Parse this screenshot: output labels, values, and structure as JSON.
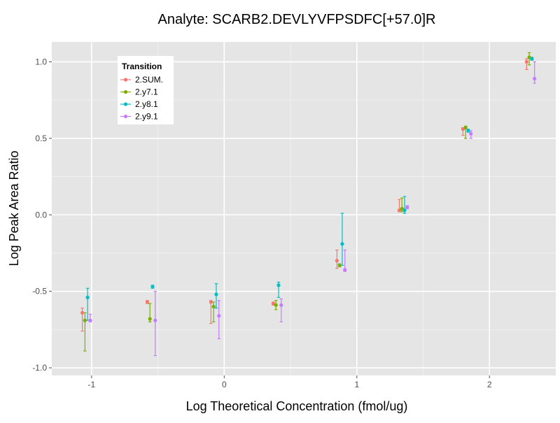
{
  "chart_data": {
    "type": "scatter",
    "title": "Analyte: SCARB2.DEVLYVFPSDFC[+57.0]R",
    "xlabel": "Log Theoretical Concentration (fmol/ug)",
    "ylabel": "Log Peak Area Ratio",
    "xlim": [
      -1.3,
      2.5
    ],
    "ylim": [
      -1.05,
      1.13
    ],
    "x_ticks": [
      -1,
      0,
      1,
      2
    ],
    "x_tick_labels": [
      "-1",
      "0",
      "1",
      "2"
    ],
    "y_ticks": [
      -1.0,
      -0.5,
      0.0,
      0.5,
      1.0
    ],
    "y_tick_labels": [
      "-1.0",
      "-0.5",
      "0.0",
      "0.5",
      "1.0"
    ],
    "grid": true,
    "legend": {
      "title": "Transition",
      "position": "top-left",
      "entries": [
        "2.SUM.",
        "2.y7.1",
        "2.y8.1",
        "2.y9.1"
      ]
    },
    "series": [
      {
        "name": "2.SUM.",
        "color": "#F8766D",
        "points": [
          {
            "x": -1.07,
            "y": -0.64,
            "lo": -0.76,
            "hi": -0.61
          },
          {
            "x": -0.58,
            "y": -0.57,
            "lo": -0.58,
            "hi": -0.56
          },
          {
            "x": -0.1,
            "y": -0.57,
            "lo": -0.71,
            "hi": -0.56
          },
          {
            "x": 0.37,
            "y": -0.58,
            "lo": -0.59,
            "hi": -0.57
          },
          {
            "x": 0.85,
            "y": -0.3,
            "lo": -0.35,
            "hi": -0.23
          },
          {
            "x": 1.32,
            "y": 0.03,
            "lo": 0.02,
            "hi": 0.1
          },
          {
            "x": 1.8,
            "y": 0.56,
            "lo": 0.52,
            "hi": 0.57
          },
          {
            "x": 2.28,
            "y": 1.0,
            "lo": 0.95,
            "hi": 1.02
          }
        ]
      },
      {
        "name": "2.y7.1",
        "color": "#7CAE00",
        "points": [
          {
            "x": -1.05,
            "y": -0.69,
            "lo": -0.89,
            "hi": -0.64
          },
          {
            "x": -0.56,
            "y": -0.68,
            "lo": -0.7,
            "hi": -0.58
          },
          {
            "x": -0.08,
            "y": -0.6,
            "lo": -0.7,
            "hi": -0.57
          },
          {
            "x": 0.39,
            "y": -0.59,
            "lo": -0.62,
            "hi": -0.56
          },
          {
            "x": 0.87,
            "y": -0.33,
            "lo": -0.34,
            "hi": -0.32
          },
          {
            "x": 1.34,
            "y": 0.04,
            "lo": 0.02,
            "hi": 0.11
          },
          {
            "x": 1.82,
            "y": 0.57,
            "lo": 0.5,
            "hi": 0.58
          },
          {
            "x": 2.3,
            "y": 1.03,
            "lo": 0.98,
            "hi": 1.06
          }
        ]
      },
      {
        "name": "2.y8.1",
        "color": "#00BFC4",
        "points": [
          {
            "x": -1.03,
            "y": -0.54,
            "lo": -0.69,
            "hi": -0.48
          },
          {
            "x": -0.54,
            "y": -0.47,
            "lo": -0.48,
            "hi": -0.46
          },
          {
            "x": -0.06,
            "y": -0.52,
            "lo": -0.61,
            "hi": -0.45
          },
          {
            "x": 0.41,
            "y": -0.46,
            "lo": -0.54,
            "hi": -0.44
          },
          {
            "x": 0.89,
            "y": -0.19,
            "lo": -0.33,
            "hi": 0.01
          },
          {
            "x": 1.36,
            "y": 0.03,
            "lo": 0.01,
            "hi": 0.12
          },
          {
            "x": 1.84,
            "y": 0.55,
            "lo": 0.54,
            "hi": 0.56
          },
          {
            "x": 2.32,
            "y": 1.02,
            "lo": 1.01,
            "hi": 1.03
          }
        ]
      },
      {
        "name": "2.y9.1",
        "color": "#C77CFF",
        "points": [
          {
            "x": -1.01,
            "y": -0.69,
            "lo": -0.7,
            "hi": -0.65
          },
          {
            "x": -0.52,
            "y": -0.69,
            "lo": -0.92,
            "hi": -0.5
          },
          {
            "x": -0.04,
            "y": -0.66,
            "lo": -0.81,
            "hi": -0.56
          },
          {
            "x": 0.43,
            "y": -0.59,
            "lo": -0.7,
            "hi": -0.55
          },
          {
            "x": 0.91,
            "y": -0.36,
            "lo": -0.37,
            "hi": -0.23
          },
          {
            "x": 1.38,
            "y": 0.05,
            "lo": 0.04,
            "hi": 0.06
          },
          {
            "x": 1.86,
            "y": 0.53,
            "lo": 0.5,
            "hi": 0.55
          },
          {
            "x": 2.34,
            "y": 0.89,
            "lo": 0.86,
            "hi": 1.0
          }
        ]
      }
    ]
  }
}
